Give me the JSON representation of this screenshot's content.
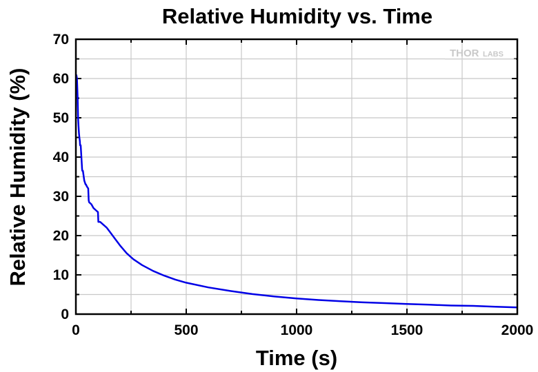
{
  "chart_data": {
    "type": "line",
    "title": "Relative Humidity vs. Time",
    "xlabel": "Time (s)",
    "ylabel": "Relative Humidity (%)",
    "xlim": [
      0,
      2000
    ],
    "ylim": [
      0,
      70
    ],
    "x_ticks": [
      0,
      500,
      1000,
      1500,
      2000
    ],
    "y_ticks": [
      0,
      10,
      20,
      30,
      40,
      50,
      60,
      70
    ],
    "grid": true,
    "legend": "none",
    "series": [
      {
        "color": "#0000e6",
        "x": [
          2,
          5,
          8,
          10,
          12,
          14,
          16,
          18,
          19,
          22,
          25,
          28,
          29,
          32,
          38,
          44,
          46,
          50,
          56,
          58,
          60,
          70,
          80,
          90,
          100,
          102,
          110,
          120,
          140,
          160,
          180,
          200,
          230,
          260,
          300,
          350,
          400,
          450,
          500,
          600,
          700,
          800,
          900,
          1000,
          1100,
          1200,
          1300,
          1400,
          1500,
          1600,
          1700,
          1800,
          1900,
          2000
        ],
        "y": [
          61,
          60,
          55,
          50,
          48,
          46,
          45,
          44,
          43,
          43,
          40,
          37,
          36.5,
          36.5,
          34,
          33,
          33,
          32.5,
          32,
          29,
          28.5,
          28,
          27,
          26.5,
          26,
          23.5,
          23.5,
          23,
          22,
          20.5,
          19,
          17.5,
          15.5,
          14,
          12.5,
          11,
          9.8,
          8.8,
          8,
          6.8,
          5.9,
          5.1,
          4.5,
          4,
          3.6,
          3.3,
          3,
          2.8,
          2.6,
          2.4,
          2.2,
          2.1,
          1.9,
          1.7
        ]
      }
    ]
  },
  "watermark": {
    "brand_main": "THOR",
    "brand_sub": "LABS"
  }
}
